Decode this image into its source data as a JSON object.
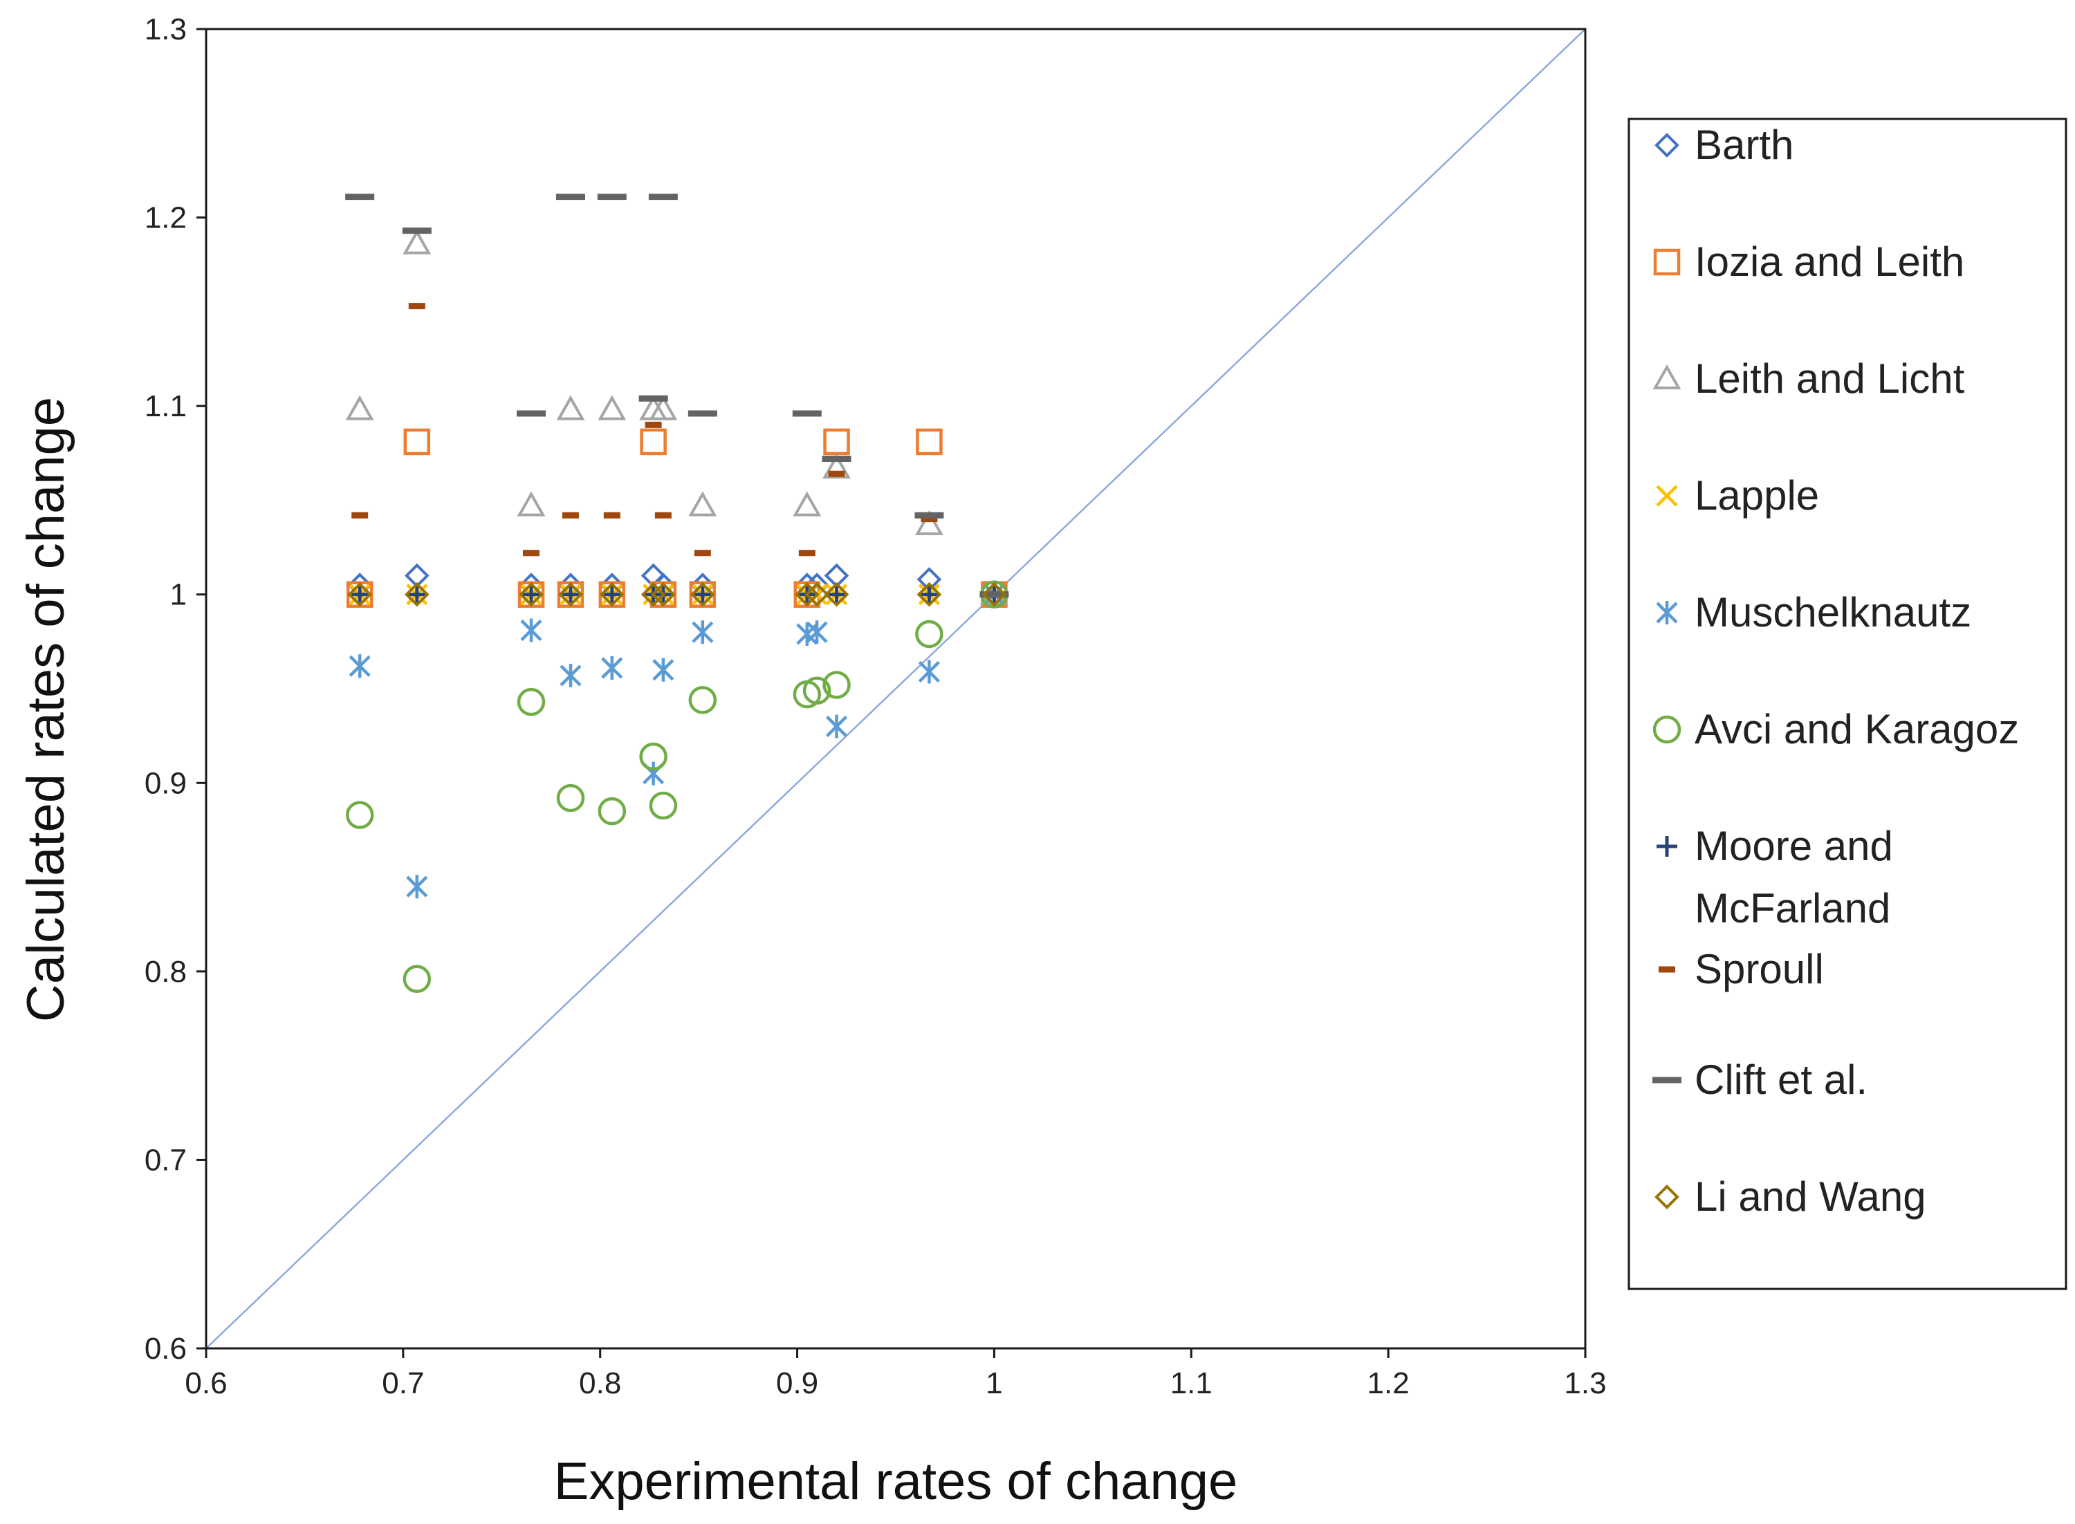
{
  "chart_data": {
    "type": "scatter",
    "title": "",
    "xlabel": "Experimental rates of change",
    "ylabel": "Calculated rates of change",
    "xlim": [
      0.6,
      1.3
    ],
    "ylim": [
      0.6,
      1.3
    ],
    "xticks": [
      "0.6",
      "0.7",
      "0.8",
      "0.9",
      "1",
      "1.1",
      "1.2",
      "1.3"
    ],
    "yticks": [
      "0.6",
      "0.7",
      "0.8",
      "0.9",
      "1",
      "1.1",
      "1.2",
      "1.3"
    ],
    "grid": false,
    "legend_position": "right",
    "reference_line": {
      "name": "y = x",
      "from": [
        0.6,
        0.6
      ],
      "to": [
        1.3,
        1.3
      ],
      "color": "#8EA9DB"
    },
    "series": [
      {
        "name": "Barth",
        "marker": "diamond",
        "color": "#4472C4",
        "points": [
          [
            0.678,
            1.005
          ],
          [
            0.707,
            1.01
          ],
          [
            0.765,
            1.005
          ],
          [
            0.785,
            1.005
          ],
          [
            0.806,
            1.005
          ],
          [
            0.827,
            1.01
          ],
          [
            0.832,
            1.005
          ],
          [
            0.852,
            1.005
          ],
          [
            0.905,
            1.005
          ],
          [
            0.91,
            1.005
          ],
          [
            0.92,
            1.01
          ],
          [
            0.967,
            1.008
          ],
          [
            1.0,
            1.0
          ]
        ]
      },
      {
        "name": "Iozia and Leith",
        "marker": "square",
        "color": "#ED7D31",
        "points": [
          [
            0.707,
            1.081
          ],
          [
            0.827,
            1.081
          ],
          [
            0.92,
            1.081
          ],
          [
            0.967,
            1.081
          ],
          [
            0.678,
            1.0
          ],
          [
            0.765,
            1.0
          ],
          [
            0.785,
            1.0
          ],
          [
            0.806,
            1.0
          ],
          [
            0.832,
            1.0
          ],
          [
            0.852,
            1.0
          ],
          [
            0.905,
            1.0
          ],
          [
            1.0,
            1.0
          ]
        ]
      },
      {
        "name": "Leith and Licht",
        "marker": "triangle",
        "color": "#A5A5A5",
        "points": [
          [
            0.678,
            1.098
          ],
          [
            0.707,
            1.186
          ],
          [
            0.765,
            1.047
          ],
          [
            0.785,
            1.098
          ],
          [
            0.806,
            1.098
          ],
          [
            0.827,
            1.098
          ],
          [
            0.832,
            1.098
          ],
          [
            0.852,
            1.047
          ],
          [
            0.905,
            1.047
          ],
          [
            0.92,
            1.067
          ],
          [
            0.967,
            1.037
          ],
          [
            1.0,
            1.0
          ]
        ]
      },
      {
        "name": "Lapple",
        "marker": "x",
        "color": "#FFC000",
        "points": [
          [
            0.678,
            1.0
          ],
          [
            0.707,
            1.0
          ],
          [
            0.765,
            1.0
          ],
          [
            0.785,
            1.0
          ],
          [
            0.806,
            1.0
          ],
          [
            0.827,
            1.0
          ],
          [
            0.832,
            1.0
          ],
          [
            0.852,
            1.0
          ],
          [
            0.905,
            1.0
          ],
          [
            0.91,
            1.0
          ],
          [
            0.92,
            1.0
          ],
          [
            0.967,
            1.0
          ],
          [
            1.0,
            1.0
          ]
        ]
      },
      {
        "name": "Muschelknautz",
        "marker": "asterisk",
        "color": "#5B9BD5",
        "points": [
          [
            0.678,
            0.962
          ],
          [
            0.707,
            0.845
          ],
          [
            0.765,
            0.981
          ],
          [
            0.785,
            0.957
          ],
          [
            0.806,
            0.961
          ],
          [
            0.827,
            0.905
          ],
          [
            0.832,
            0.96
          ],
          [
            0.852,
            0.98
          ],
          [
            0.905,
            0.979
          ],
          [
            0.91,
            0.98
          ],
          [
            0.92,
            0.93
          ],
          [
            0.967,
            0.959
          ],
          [
            1.0,
            1.0
          ]
        ]
      },
      {
        "name": "Avci and Karagoz",
        "marker": "circle",
        "color": "#70AD47",
        "points": [
          [
            0.678,
            0.883
          ],
          [
            0.707,
            0.796
          ],
          [
            0.765,
            0.943
          ],
          [
            0.785,
            0.892
          ],
          [
            0.806,
            0.885
          ],
          [
            0.827,
            0.914
          ],
          [
            0.832,
            0.888
          ],
          [
            0.852,
            0.944
          ],
          [
            0.905,
            0.947
          ],
          [
            0.91,
            0.949
          ],
          [
            0.92,
            0.952
          ],
          [
            0.967,
            0.979
          ],
          [
            1.0,
            1.0
          ]
        ]
      },
      {
        "name": "Moore and McFarland",
        "marker": "plus",
        "color": "#264478",
        "points": [
          [
            0.678,
            1.0
          ],
          [
            0.707,
            1.0
          ],
          [
            0.765,
            1.0
          ],
          [
            0.785,
            1.0
          ],
          [
            0.806,
            1.0
          ],
          [
            0.827,
            1.0
          ],
          [
            0.832,
            1.0
          ],
          [
            0.852,
            1.0
          ],
          [
            0.905,
            1.0
          ],
          [
            0.92,
            1.0
          ],
          [
            0.967,
            1.0
          ],
          [
            1.0,
            1.0
          ]
        ]
      },
      {
        "name": "Sproull",
        "marker": "dash",
        "color": "#9E480E",
        "points": [
          [
            0.678,
            1.042
          ],
          [
            0.707,
            1.153
          ],
          [
            0.765,
            1.022
          ],
          [
            0.785,
            1.042
          ],
          [
            0.806,
            1.042
          ],
          [
            0.827,
            1.09
          ],
          [
            0.832,
            1.042
          ],
          [
            0.852,
            1.022
          ],
          [
            0.905,
            1.022
          ],
          [
            0.92,
            1.064
          ],
          [
            0.967,
            1.04
          ],
          [
            1.0,
            1.0
          ]
        ]
      },
      {
        "name": "Clift et al.",
        "marker": "longdash",
        "color": "#636363",
        "points": [
          [
            0.678,
            1.211
          ],
          [
            0.707,
            1.193
          ],
          [
            0.765,
            1.096
          ],
          [
            0.785,
            1.211
          ],
          [
            0.806,
            1.211
          ],
          [
            0.827,
            1.104
          ],
          [
            0.832,
            1.211
          ],
          [
            0.852,
            1.096
          ],
          [
            0.905,
            1.096
          ],
          [
            0.92,
            1.072
          ],
          [
            0.967,
            1.042
          ],
          [
            1.0,
            1.0
          ]
        ]
      },
      {
        "name": "Li and Wang",
        "marker": "diamond",
        "color": "#997300",
        "points": [
          [
            0.678,
            1.0
          ],
          [
            0.707,
            1.0
          ],
          [
            0.765,
            1.0
          ],
          [
            0.785,
            1.0
          ],
          [
            0.806,
            1.0
          ],
          [
            0.827,
            1.0
          ],
          [
            0.832,
            1.0
          ],
          [
            0.852,
            1.0
          ],
          [
            0.905,
            1.0
          ],
          [
            0.91,
            1.0
          ],
          [
            0.92,
            1.0
          ],
          [
            0.967,
            1.0
          ],
          [
            1.0,
            1.0
          ]
        ]
      }
    ],
    "legend": [
      {
        "series": "Barth",
        "lines": [
          "Barth"
        ]
      },
      {
        "series": "Iozia and Leith",
        "lines": [
          "Iozia and Leith"
        ]
      },
      {
        "series": "Leith and Licht",
        "lines": [
          "Leith and Licht"
        ]
      },
      {
        "series": "Lapple",
        "lines": [
          "Lapple"
        ]
      },
      {
        "series": "Muschelknautz",
        "lines": [
          "Muschelknautz"
        ]
      },
      {
        "series": "Avci and Karagoz",
        "lines": [
          "Avci and Karagoz"
        ]
      },
      {
        "series": "Moore and McFarland",
        "lines": [
          "Moore and",
          "McFarland"
        ]
      },
      {
        "series": "Sproull",
        "lines": [
          "Sproull"
        ]
      },
      {
        "series": "Clift et al.",
        "lines": [
          "Clift et al."
        ]
      },
      {
        "series": "Li and Wang",
        "lines": [
          "Li and Wang"
        ]
      }
    ]
  }
}
